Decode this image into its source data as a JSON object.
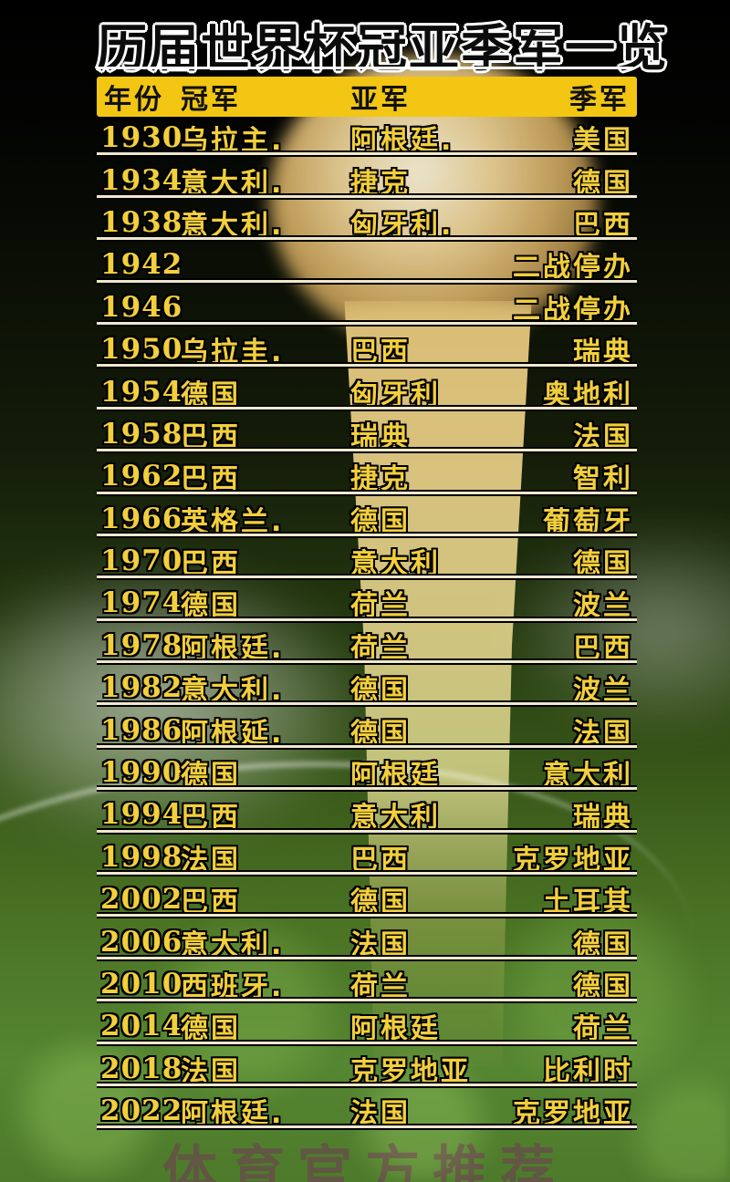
{
  "title": "历届世界杯冠亚季军一览",
  "watermark": "体育官方推荐",
  "colors": {
    "header_bg": "#F2C613",
    "row_text": "#F2CF3C",
    "title_text": "#0C0C0C",
    "title_outline": "#FFFFFF",
    "separator": "#EFE8CD",
    "watermark": "#7D2364",
    "grass": "#4D7A2B",
    "trophy_gold": "#D8BC74"
  },
  "table": {
    "headers": [
      "年份",
      "冠军",
      "亚军",
      "季军"
    ],
    "rows": [
      {
        "year": "1930",
        "champion": "乌拉主.",
        "runner_up": "阿根廷.",
        "third": "美国"
      },
      {
        "year": "1934",
        "champion": "意大利.",
        "runner_up": "捷克",
        "third": "德国"
      },
      {
        "year": "1938",
        "champion": "意大利.",
        "runner_up": "匈牙利.",
        "third": "巴西"
      },
      {
        "year": "1942",
        "champion": "",
        "runner_up": "",
        "third": "二战停办"
      },
      {
        "year": "1946",
        "champion": "",
        "runner_up": "",
        "third": "二战停办"
      },
      {
        "year": "1950",
        "champion": "乌拉圭.",
        "runner_up": "巴西",
        "third": "瑞典"
      },
      {
        "year": "1954",
        "champion": "德国",
        "runner_up": "匈牙利",
        "third": "奥地利"
      },
      {
        "year": "1958",
        "champion": "巴西",
        "runner_up": "瑞典",
        "third": "法国"
      },
      {
        "year": "1962",
        "champion": "巴西",
        "runner_up": "捷克",
        "third": "智利"
      },
      {
        "year": "1966",
        "champion": "英格兰.",
        "runner_up": "德国",
        "third": "葡萄牙"
      },
      {
        "year": "1970",
        "champion": "巴西",
        "runner_up": "意大利",
        "third": "德国"
      },
      {
        "year": "1974",
        "champion": "德国",
        "runner_up": "荷兰",
        "third": "波兰"
      },
      {
        "year": "1978",
        "champion": "阿根廷.",
        "runner_up": "荷兰",
        "third": "巴西"
      },
      {
        "year": "1982",
        "champion": "意大利.",
        "runner_up": "德国",
        "third": "波兰"
      },
      {
        "year": "1986",
        "champion": "阿根延.",
        "runner_up": "德国",
        "third": "法国"
      },
      {
        "year": "1990",
        "champion": "德国",
        "runner_up": "阿根廷",
        "third": "意大利"
      },
      {
        "year": "1994",
        "champion": "巴西",
        "runner_up": "意大利",
        "third": "瑞典"
      },
      {
        "year": "1998",
        "champion": "法国",
        "runner_up": "巴西",
        "third": "克罗地亚"
      },
      {
        "year": "2002",
        "champion": "巴西",
        "runner_up": "德国",
        "third": "土耳其"
      },
      {
        "year": "2006",
        "champion": "意大利.",
        "runner_up": "法国",
        "third": "德国"
      },
      {
        "year": "2010",
        "champion": "西班牙.",
        "runner_up": "荷兰",
        "third": "德国"
      },
      {
        "year": "2014",
        "champion": "德国",
        "runner_up": "阿根廷",
        "third": "荷兰"
      },
      {
        "year": "2018",
        "champion": "法国",
        "runner_up": "克罗地亚",
        "third": "比利时"
      },
      {
        "year": "2022",
        "champion": "阿根廷.",
        "runner_up": "法国",
        "third": "克罗地亚"
      }
    ]
  }
}
